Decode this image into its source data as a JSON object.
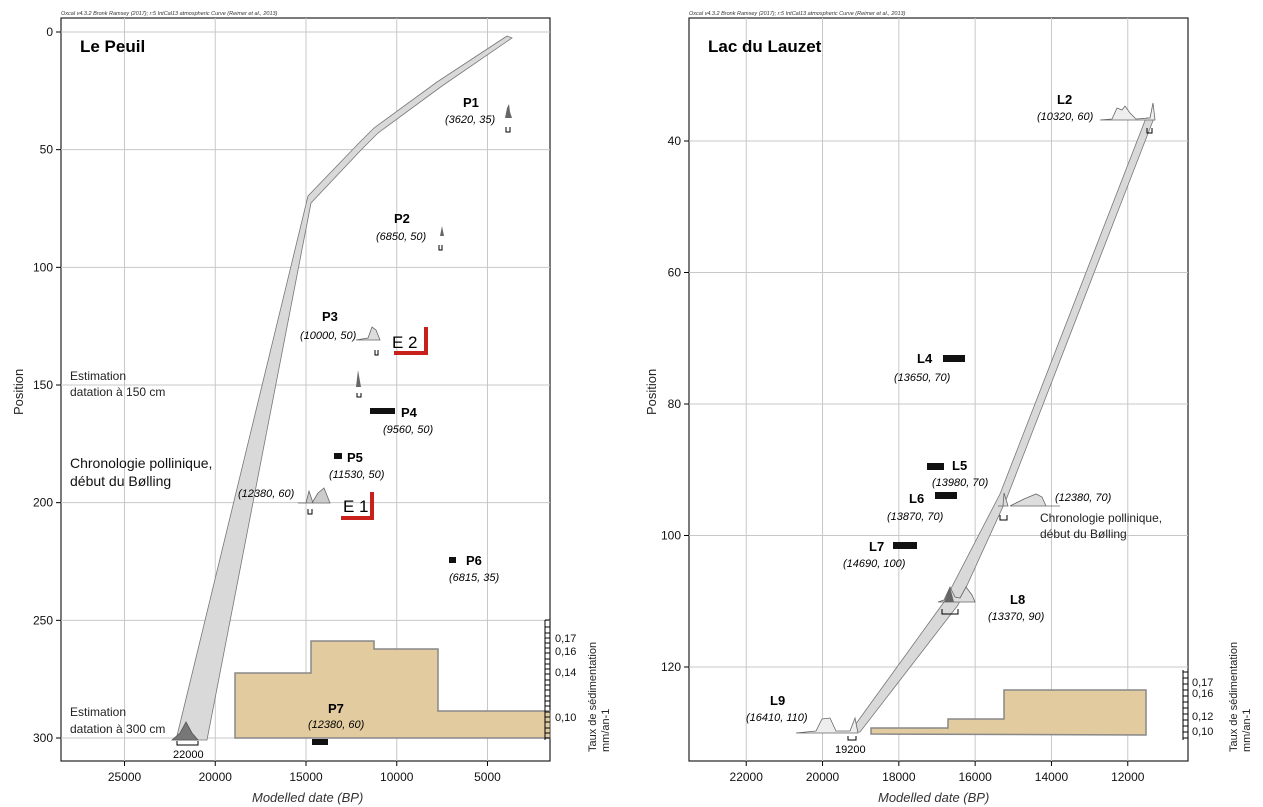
{
  "chart_data": [
    {
      "type": "scatter",
      "credit": "Oxcal v4.3.2 Bronk Ramsey (2017); r:5 IntCal13 atmospheric Curve (Reimer et al., 2013)",
      "title": "Le Peuil",
      "xlabel": "Modelled date (BP)",
      "ylabel": "Position",
      "xlim": [
        28500,
        1500
      ],
      "ylim": [
        300,
        0
      ],
      "xticks": [
        25000,
        20000,
        15000,
        10000,
        5000
      ],
      "yticks": [
        0,
        50,
        100,
        150,
        200,
        250,
        300
      ],
      "grid": true,
      "depth_model": [
        {
          "date": 4000,
          "position": 37
        },
        {
          "date": 7900,
          "position": 83
        },
        {
          "date": 11300,
          "position": 130
        },
        {
          "date": 12400,
          "position": 147
        },
        {
          "date": 15000,
          "position": 199
        },
        {
          "date": 22000,
          "position": 300
        }
      ],
      "samples": [
        {
          "label": "P1",
          "value": "(3620, 35)",
          "date": 4000,
          "position": 37,
          "type": "modelled"
        },
        {
          "label": "P2",
          "value": "(6850, 50)",
          "date": 7900,
          "position": 83,
          "type": "modelled"
        },
        {
          "label": "P3",
          "value": "(10000, 50)",
          "date": 11300,
          "position": 130,
          "type": "modelled"
        },
        {
          "label": "P4",
          "value": "(9560, 50)",
          "date": 10500,
          "position": 161,
          "type": "outlier"
        },
        {
          "label": "P5",
          "value": "(11530, 50)",
          "date": 13500,
          "position": 180,
          "type": "outlier"
        },
        {
          "label": "",
          "value": "(12380, 60)",
          "date": 15000,
          "position": 199,
          "type": "modelled"
        },
        {
          "label": "P6",
          "value": "(6815, 35)",
          "date": 7400,
          "position": 224,
          "type": "outlier"
        },
        {
          "label": "P7",
          "value": "(12380, 60)",
          "date": 14600,
          "position": 301,
          "type": "outlier"
        }
      ],
      "annotations": {
        "est150": [
          "Estimation",
          "datation à 150 cm"
        ],
        "pollen": [
          "Chronologie pollinique,",
          "début du Bølling"
        ],
        "est300": [
          "Estimation",
          "datation à 300 cm"
        ],
        "e1": "E 1",
        "e2": "E 2",
        "date_22000": "22000"
      },
      "sedimentation": {
        "title": [
          "Taux de sédimentation",
          "mm/an-1"
        ],
        "ticks": [
          "0,17",
          "0,16",
          "0,14",
          "0,10"
        ],
        "steps": [
          {
            "from": 19200,
            "to": 14800,
            "rate": 0.14
          },
          {
            "from": 14800,
            "to": 11700,
            "rate": 0.17
          },
          {
            "from": 11700,
            "to": 8000,
            "rate": 0.165
          },
          {
            "from": 8000,
            "to": 1500,
            "rate": 0.11
          }
        ]
      }
    },
    {
      "type": "scatter",
      "credit": "Oxcal v4.3.2 Bronk Ramsey (2017); r:5 IntCal13 atmospheric Curve (Reimer et al., 2013)",
      "title": "Lac du Lauzet",
      "xlabel": "Modelled date (BP)",
      "ylabel": "Position",
      "xlim": [
        23500,
        10500
      ],
      "ylim": [
        132,
        24
      ],
      "xticks": [
        22000,
        20000,
        18000,
        16000,
        14000,
        12000
      ],
      "yticks": [
        40,
        60,
        80,
        100,
        120
      ],
      "grid": true,
      "depth_model": [
        {
          "date": 11600,
          "position": 37
        },
        {
          "date": 15200,
          "position": 95
        },
        {
          "date": 16700,
          "position": 110
        },
        {
          "date": 19100,
          "position": 131
        }
      ],
      "samples": [
        {
          "label": "L2",
          "value": "(10320, 60)",
          "date": 11600,
          "position": 37,
          "type": "modelled"
        },
        {
          "label": "L4",
          "value": "(13650, 70)",
          "date": 16300,
          "position": 73,
          "type": "outlier"
        },
        {
          "label": "L5",
          "value": "(13980, 70)",
          "date": 16900,
          "position": 89,
          "type": "outlier"
        },
        {
          "label": "L6",
          "value": "(13870, 70)",
          "date": 16600,
          "position": 93,
          "type": "outlier"
        },
        {
          "label": "",
          "value": "(12380, 70)",
          "date": 15200,
          "position": 95,
          "type": "modelled"
        },
        {
          "label": "L7",
          "value": "(14690, 100)",
          "date": 17800,
          "position": 100,
          "type": "outlier"
        },
        {
          "label": "L8",
          "value": "(13370, 90)",
          "date": 16700,
          "position": 110,
          "type": "modelled"
        },
        {
          "label": "L9",
          "value": "(16410, 110)",
          "date": 19100,
          "position": 131,
          "type": "modelled"
        }
      ],
      "annotations": {
        "pollen": [
          "Chronologie pollinique,",
          "début du Bølling"
        ],
        "date_19200": "19200"
      },
      "sedimentation": {
        "title": [
          "Taux de sédimentation",
          "mm/an-1"
        ],
        "ticks": [
          "0,17",
          "0,16",
          "0,12",
          "0,10"
        ],
        "steps": [
          {
            "from": 18600,
            "to": 16700,
            "rate": 0.1
          },
          {
            "from": 16700,
            "to": 15000,
            "rate": 0.12
          },
          {
            "from": 15000,
            "to": 11600,
            "rate": 0.16
          }
        ]
      }
    }
  ]
}
